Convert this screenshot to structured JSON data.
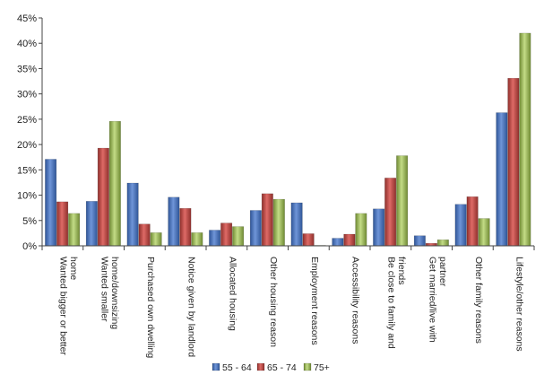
{
  "chart_data": {
    "type": "bar",
    "categories": [
      [
        "Wanted bigger or better",
        "home"
      ],
      [
        "Wanted smaller",
        "home/downsizing"
      ],
      [
        "Purchased own dwelling"
      ],
      [
        "Notice given by landlord"
      ],
      [
        "Allocated housing"
      ],
      [
        "Other housing reason"
      ],
      [
        "Employment reasons"
      ],
      [
        "Accessibility reasons"
      ],
      [
        "Be close to family and",
        "friends"
      ],
      [
        "Get married/live with",
        "partner"
      ],
      [
        "Other family reasons"
      ],
      [
        "Lifestyle/other reasons"
      ]
    ],
    "series": [
      {
        "name": "55 - 64",
        "color": "#4472C4",
        "values": [
          17.1,
          8.8,
          12.4,
          9.6,
          3.1,
          7.0,
          8.5,
          1.5,
          7.3,
          2.0,
          8.2,
          26.3
        ]
      },
      {
        "name": "65 - 74",
        "color": "#C0504D",
        "values": [
          8.7,
          19.3,
          4.3,
          7.4,
          4.5,
          10.3,
          2.4,
          2.3,
          13.4,
          0.5,
          9.7,
          33.1
        ]
      },
      {
        "name": "75+",
        "color": "#9BBB59",
        "values": [
          6.4,
          24.6,
          2.6,
          2.6,
          3.8,
          9.2,
          0.1,
          6.4,
          17.8,
          1.2,
          5.4,
          42.0
        ]
      }
    ],
    "ylim": [
      0,
      45
    ],
    "yticks": [
      "0%",
      "5%",
      "10%",
      "15%",
      "20%",
      "25%",
      "30%",
      "35%",
      "40%",
      "45%"
    ],
    "grid": false,
    "legend_position": "bottom"
  }
}
